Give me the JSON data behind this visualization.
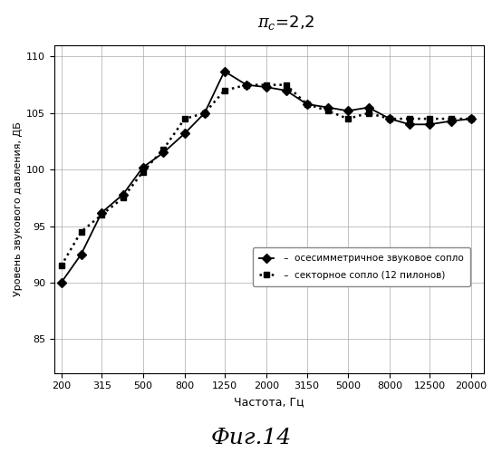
{
  "title": "πс=2,2",
  "xlabel": "Частота, Гц",
  "ylabel": "Уровень звукового давления, ДБ",
  "caption": "Фиг.14",
  "ylim": [
    82,
    111
  ],
  "yticks": [
    85,
    90,
    95,
    100,
    105,
    110
  ],
  "xtick_labels": [
    "200",
    "315",
    "500",
    "800",
    "1250",
    "2000",
    "3150",
    "5000",
    "8000",
    "12500",
    "20000"
  ],
  "xtick_values": [
    200,
    315,
    500,
    800,
    1250,
    2000,
    3150,
    5000,
    8000,
    12500,
    20000
  ],
  "series1_label": " –  осесимметричное звуковое сопло",
  "series2_label": " –  секторное сопло (12 пилонов)",
  "series1_x": [
    200,
    250,
    315,
    400,
    500,
    630,
    800,
    1000,
    1250,
    1600,
    2000,
    2500,
    3150,
    4000,
    5000,
    6300,
    8000,
    10000,
    12500,
    16000,
    20000
  ],
  "series1_y": [
    90.0,
    92.5,
    96.2,
    97.8,
    100.2,
    101.5,
    103.2,
    105.0,
    108.7,
    107.5,
    107.3,
    107.0,
    105.8,
    105.5,
    105.2,
    105.5,
    104.5,
    104.0,
    104.0,
    104.3,
    104.5
  ],
  "series2_x": [
    200,
    250,
    315,
    400,
    500,
    630,
    800,
    1000,
    1250,
    1600,
    2000,
    2500,
    3150,
    4000,
    5000,
    6300,
    8000,
    10000,
    12500,
    16000,
    20000
  ],
  "series2_y": [
    91.5,
    94.5,
    96.0,
    97.5,
    99.8,
    101.8,
    104.5,
    105.0,
    107.0,
    107.5,
    107.5,
    107.5,
    105.8,
    105.2,
    104.5,
    105.0,
    104.5,
    104.5,
    104.5,
    104.5,
    104.5
  ],
  "line_color": "#000000",
  "bg_color": "#ffffff",
  "grid_color": "#aaaaaa"
}
